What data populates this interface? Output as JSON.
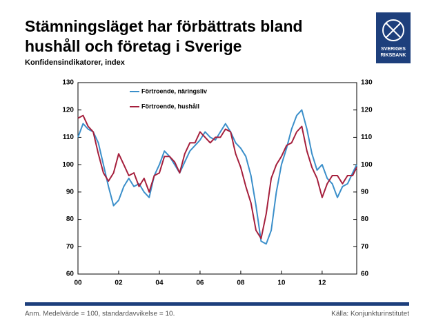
{
  "chart_data": {
    "type": "line",
    "title": [
      "Stämningsläget har förbättrats bland",
      "hushåll och företag i Sverige"
    ],
    "subtitle": "Konfidensindikatorer, index",
    "logo_text": [
      "SVERIGES",
      "RIKSBANK"
    ],
    "note": "Anm. Medelvärde = 100, standardavvikelse = 10.",
    "source": "Källa: Konjunkturinstitutet",
    "x": [
      2000,
      2000.25,
      2000.5,
      2000.75,
      2001,
      2001.25,
      2001.5,
      2001.75,
      2002,
      2002.25,
      2002.5,
      2002.75,
      2003,
      2003.25,
      2003.5,
      2003.75,
      2004,
      2004.25,
      2004.5,
      2004.75,
      2005,
      2005.25,
      2005.5,
      2005.75,
      2006,
      2006.25,
      2006.5,
      2006.75,
      2007,
      2007.25,
      2007.5,
      2007.75,
      2008,
      2008.25,
      2008.5,
      2008.75,
      2009,
      2009.25,
      2009.5,
      2009.75,
      2010,
      2010.25,
      2010.5,
      2010.75,
      2011,
      2011.25,
      2011.5,
      2011.75,
      2012,
      2012.25,
      2012.5,
      2012.75,
      2013,
      2013.25,
      2013.5,
      2013.7
    ],
    "series": [
      {
        "name": "Förtroende, näringsliv",
        "color": "#3b8fca",
        "values": [
          110,
          115,
          113,
          112,
          108,
          100,
          92,
          85,
          87,
          92,
          95,
          92,
          93,
          90,
          88,
          96,
          100,
          105,
          103,
          100,
          97,
          101,
          105,
          107,
          109,
          112,
          110,
          109,
          112,
          115,
          112,
          108,
          106,
          103,
          96,
          85,
          72,
          71,
          76,
          90,
          100,
          106,
          113,
          118,
          120,
          113,
          104,
          98,
          100,
          95,
          93,
          88,
          92,
          93,
          97,
          100
        ]
      },
      {
        "name": "Förtroende, hushåll",
        "color": "#a51f3c",
        "values": [
          117,
          118,
          114,
          112,
          104,
          97,
          94,
          97,
          104,
          100,
          96,
          97,
          92,
          95,
          90,
          96,
          97,
          103,
          103,
          101,
          97,
          104,
          108,
          108,
          112,
          110,
          108,
          110,
          110,
          113,
          112,
          104,
          99,
          92,
          86,
          76,
          73,
          82,
          95,
          100,
          103,
          107,
          108,
          112,
          114,
          105,
          99,
          95,
          88,
          93,
          96,
          96,
          93,
          96,
          96,
          99
        ]
      }
    ],
    "xlim": [
      2000,
      2013.7
    ],
    "xticks": [
      {
        "value": 2000,
        "label": "00"
      },
      {
        "value": 2002,
        "label": "02"
      },
      {
        "value": 2004,
        "label": "04"
      },
      {
        "value": 2006,
        "label": "06"
      },
      {
        "value": 2008,
        "label": "08"
      },
      {
        "value": 2010,
        "label": "10"
      },
      {
        "value": 2012,
        "label": "12"
      }
    ],
    "ylim": [
      60,
      130
    ],
    "yticks": [
      60,
      70,
      80,
      90,
      100,
      110,
      120,
      130
    ],
    "legend": "upper left"
  }
}
